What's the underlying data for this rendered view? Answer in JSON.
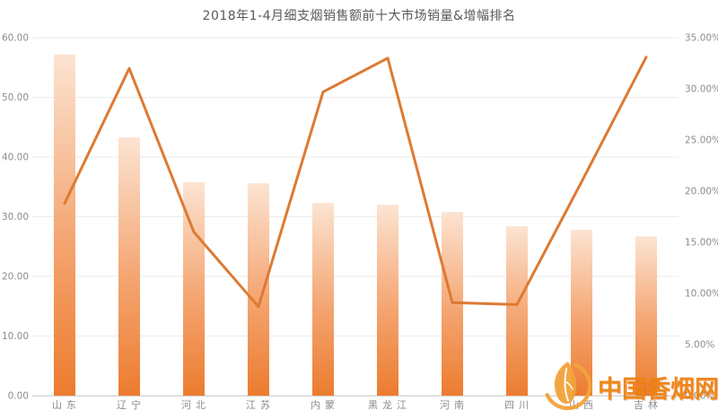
{
  "watermark": {
    "text": "中国香烟网",
    "logo": "leaf-in-circle",
    "color": "#ee8413"
  },
  "chart_data": {
    "type": "bar+line",
    "title": "2018年1-4月细支烟销售额前十大市场销量&增幅排名",
    "categories": [
      "山东",
      "辽宁",
      "河北",
      "江苏",
      "内蒙",
      "黑龙江",
      "河南",
      "四川",
      "山西",
      "吉林"
    ],
    "series": [
      {
        "name": "销量",
        "type": "bar",
        "axis": "left",
        "values": [
          57.2,
          43.3,
          35.8,
          35.6,
          32.3,
          32.0,
          30.8,
          28.4,
          27.8,
          26.7
        ]
      },
      {
        "name": "增幅",
        "type": "line",
        "axis": "right",
        "values": [
          18.8,
          32.0,
          16.0,
          8.7,
          29.7,
          33.0,
          9.1,
          8.9,
          20.9,
          33.1
        ]
      }
    ],
    "left_axis": {
      "min": 0,
      "max": 60,
      "step": 10,
      "labels": [
        "0.00",
        "10.00",
        "20.00",
        "30.00",
        "40.00",
        "50.00",
        "60.00"
      ]
    },
    "right_axis": {
      "min": 0,
      "max": 35,
      "step": 5,
      "labels": [
        "0.00%",
        "5.00%",
        "10.00%",
        "15.00%",
        "20.00%",
        "25.00%",
        "30.00%",
        "35.00%"
      ]
    },
    "grid": true,
    "legend_position": "none",
    "colors": {
      "bar_gradient_top": "#fce4d2",
      "bar_gradient_bottom": "#ec7c2f",
      "line": "#dd7a33",
      "gridline": "#ebebeb",
      "axis_line": "#d6d6d6",
      "tick_label": "#8c8c8c",
      "title": "#595959"
    }
  }
}
